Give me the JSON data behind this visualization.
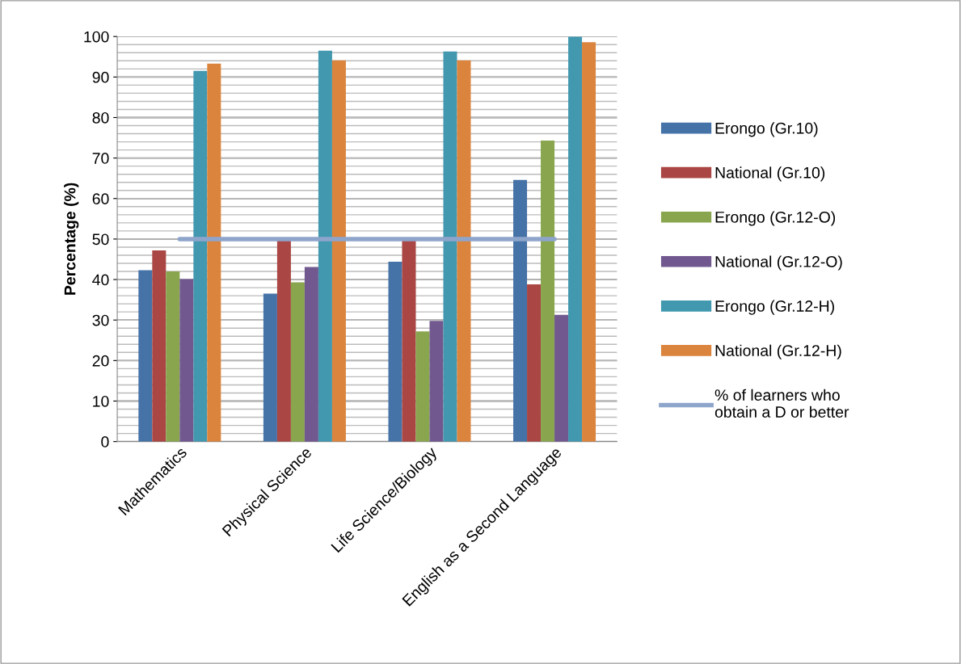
{
  "chart_data": {
    "type": "bar",
    "ylabel": "Percentage (%)",
    "categories": [
      "Mathematics",
      "Physical Science",
      "Life Science/Biology",
      "English as a Second Language"
    ],
    "series": [
      {
        "name": "Erongo (Gr.10)",
        "color": "#4572a7",
        "values": [
          42.3,
          36.5,
          44.4,
          64.6
        ]
      },
      {
        "name": "National (Gr.10)",
        "color": "#aa4643",
        "values": [
          47.2,
          49.7,
          49.7,
          38.8
        ]
      },
      {
        "name": "Erongo (Gr.12-O)",
        "color": "#89a54e",
        "values": [
          42.0,
          39.3,
          27.2,
          74.3
        ]
      },
      {
        "name": "National (Gr.12-O)",
        "color": "#71588f",
        "values": [
          40.1,
          43.1,
          29.8,
          31.3
        ]
      },
      {
        "name": "Erongo (Gr.12-H)",
        "color": "#4198af",
        "values": [
          91.5,
          96.5,
          96.3,
          100
        ]
      },
      {
        "name": "National (Gr.12-H)",
        "color": "#db843d",
        "values": [
          93.3,
          94.1,
          94.1,
          98.6
        ]
      },
      {
        "name": "% of learners who obtain a D or better",
        "color": "#8ea5cb",
        "type": "line",
        "values": [
          50,
          50,
          50,
          50
        ]
      }
    ],
    "ylim": [
      0,
      100
    ],
    "yticks": [
      0,
      10,
      20,
      30,
      40,
      50,
      60,
      70,
      80,
      90,
      100
    ],
    "grid": "y",
    "legend": "right"
  }
}
